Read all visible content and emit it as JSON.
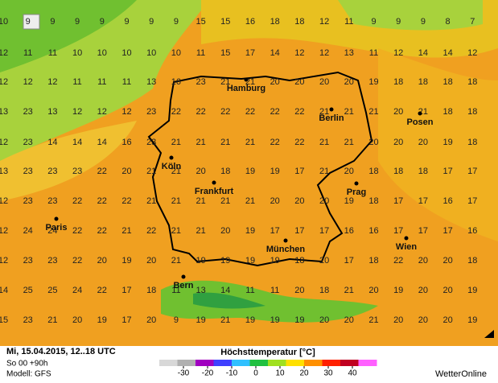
{
  "map": {
    "grid_values": [
      [
        10,
        9,
        9,
        9,
        9,
        9,
        9,
        9,
        15,
        15,
        16,
        18,
        18,
        12,
        11,
        9,
        9,
        9,
        8,
        7
      ],
      [
        12,
        11,
        11,
        10,
        10,
        10,
        10,
        10,
        11,
        15,
        17,
        14,
        12,
        12,
        13,
        11,
        12,
        14,
        14,
        12
      ],
      [
        12,
        12,
        12,
        11,
        11,
        11,
        13,
        16,
        23,
        21,
        21,
        20,
        20,
        20,
        20,
        19,
        18,
        18,
        18,
        18
      ],
      [
        13,
        23,
        13,
        12,
        12,
        12,
        23,
        22,
        22,
        22,
        22,
        22,
        22,
        21,
        21,
        21,
        20,
        21,
        18,
        18
      ],
      [
        12,
        23,
        14,
        14,
        14,
        16,
        23,
        21,
        21,
        21,
        21,
        22,
        22,
        21,
        21,
        20,
        20,
        20,
        19,
        18
      ],
      [
        13,
        23,
        23,
        23,
        22,
        20,
        21,
        21,
        20,
        18,
        19,
        19,
        17,
        21,
        20,
        18,
        18,
        18,
        17,
        17
      ],
      [
        12,
        23,
        23,
        22,
        22,
        22,
        21,
        21,
        21,
        21,
        21,
        20,
        20,
        20,
        19,
        18,
        17,
        17,
        16,
        17
      ],
      [
        12,
        24,
        24,
        22,
        22,
        21,
        22,
        21,
        21,
        20,
        19,
        17,
        17,
        17,
        16,
        16,
        17,
        17,
        17,
        16
      ],
      [
        12,
        23,
        23,
        22,
        20,
        19,
        20,
        21,
        19,
        19,
        19,
        19,
        18,
        20,
        17,
        18,
        22,
        20,
        20,
        18
      ],
      [
        14,
        25,
        25,
        24,
        22,
        17,
        18,
        11,
        13,
        14,
        11,
        11,
        20,
        18,
        21,
        20,
        19,
        20,
        20,
        19
      ],
      [
        15,
        23,
        21,
        20,
        19,
        17,
        20,
        9,
        19,
        21,
        19,
        19,
        19,
        20,
        20,
        21,
        20,
        20,
        20,
        19
      ]
    ],
    "cities": [
      "Hamburg",
      "Berlin",
      "Posen",
      "Köln",
      "Frankfurt",
      "Prag",
      "Paris",
      "München",
      "Wien",
      "Bern"
    ]
  },
  "footer": {
    "date": "Mi, 15.04.2015, 12..18 UTC",
    "run": "So 00 +90h",
    "model": "Modell: GFS",
    "title": "Höchsttemperatur [°C]",
    "brand": "WetterOnline"
  },
  "colorbar": {
    "range": [
      -40,
      50
    ],
    "ticks": [
      -30,
      -20,
      -10,
      0,
      10,
      20,
      30,
      40
    ],
    "colors": [
      "#d8d8d8",
      "#b0b0b0",
      "#a000c0",
      "#4040ff",
      "#30c0ff",
      "#20c040",
      "#a0e020",
      "#ffe000",
      "#ff9000",
      "#ff2000",
      "#c00020",
      "#ff60ff"
    ]
  }
}
